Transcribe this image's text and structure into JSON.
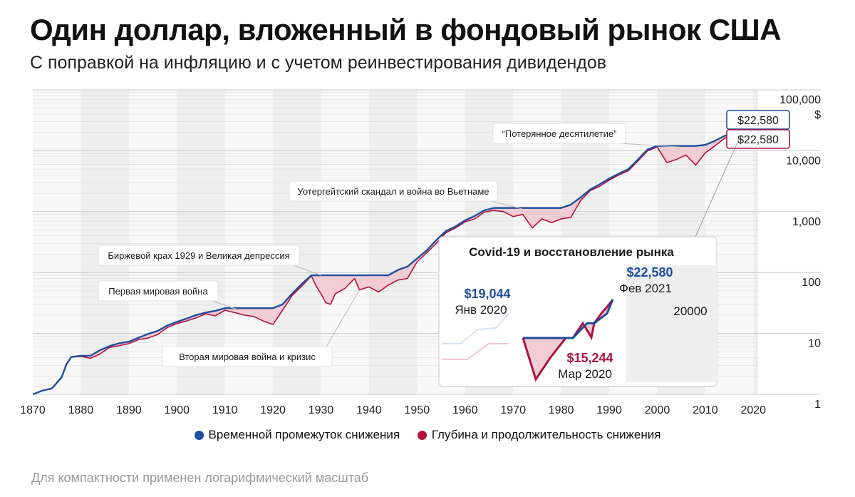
{
  "header": {
    "title": "Один доллар, вложенный в фондовый рынок США",
    "subtitle": "С поправкой на инфляцию и с учетом реинвестирования дивидендов"
  },
  "colors": {
    "blue": "#1f4e9c",
    "red": "#b0123f",
    "fill_red": "#f0c6cf",
    "band": "#efefef"
  },
  "chart_data": {
    "type": "line",
    "y_scale": "log",
    "ylim": [
      1,
      100000
    ],
    "xlim": [
      1870,
      2021
    ],
    "y_ticks": [
      {
        "value": 1,
        "label": "1"
      },
      {
        "value": 10,
        "label": "10"
      },
      {
        "value": 100,
        "label": "100"
      },
      {
        "value": 1000,
        "label": "1,000"
      },
      {
        "value": 10000,
        "label": "10,000"
      },
      {
        "value": 100000,
        "label": "100,000"
      }
    ],
    "y_unit": "$",
    "x_ticks": [
      {
        "value": 1870,
        "label": "1870"
      },
      {
        "value": 1880,
        "label": "1880"
      },
      {
        "value": 1890,
        "label": "1890"
      },
      {
        "value": 1900,
        "label": "1900"
      },
      {
        "value": 1910,
        "label": "1910"
      },
      {
        "value": 1920,
        "label": "1920"
      },
      {
        "value": 1930,
        "label": "1930"
      },
      {
        "value": 1940,
        "label": "1940"
      },
      {
        "value": 1950,
        "label": "1950"
      },
      {
        "value": 1960,
        "label": "1960"
      },
      {
        "value": 1970,
        "label": "1970"
      },
      {
        "value": 1980,
        "label": "1980"
      },
      {
        "value": 1990,
        "label": "1990"
      },
      {
        "value": 2000,
        "label": "2000"
      },
      {
        "value": 2010,
        "label": "2010"
      },
      {
        "value": 2020,
        "label": "2020"
      }
    ],
    "grid": true,
    "shaded_decades": true,
    "series": [
      {
        "name": "Временной промежуток снижения",
        "role": "peak",
        "color": "#1f4e9c",
        "points": [
          [
            1870,
            1.0
          ],
          [
            1872,
            1.15
          ],
          [
            1874,
            1.25
          ],
          [
            1876,
            1.9
          ],
          [
            1877,
            3.1
          ],
          [
            1878,
            4.1
          ],
          [
            1880,
            4.3
          ],
          [
            1882,
            4.3
          ],
          [
            1884,
            5.3
          ],
          [
            1886,
            6.2
          ],
          [
            1888,
            6.9
          ],
          [
            1890,
            7.3
          ],
          [
            1892,
            8.5
          ],
          [
            1894,
            9.8
          ],
          [
            1896,
            11
          ],
          [
            1898,
            13.5
          ],
          [
            1900,
            15.5
          ],
          [
            1902,
            17.5
          ],
          [
            1904,
            20
          ],
          [
            1906,
            22
          ],
          [
            1908,
            23.5
          ],
          [
            1910,
            26
          ],
          [
            1912,
            26
          ],
          [
            1914,
            26
          ],
          [
            1916,
            26
          ],
          [
            1918,
            26
          ],
          [
            1920,
            26
          ],
          [
            1922,
            30
          ],
          [
            1924,
            45
          ],
          [
            1926,
            65
          ],
          [
            1928,
            90
          ],
          [
            1930,
            90
          ],
          [
            1932,
            90
          ],
          [
            1934,
            90
          ],
          [
            1936,
            90
          ],
          [
            1938,
            90
          ],
          [
            1940,
            90
          ],
          [
            1942,
            90
          ],
          [
            1944,
            90
          ],
          [
            1946,
            110
          ],
          [
            1948,
            125
          ],
          [
            1950,
            170
          ],
          [
            1952,
            230
          ],
          [
            1954,
            340
          ],
          [
            1956,
            480
          ],
          [
            1958,
            570
          ],
          [
            1960,
            720
          ],
          [
            1962,
            850
          ],
          [
            1964,
            1050
          ],
          [
            1966,
            1150
          ],
          [
            1968,
            1150
          ],
          [
            1970,
            1150
          ],
          [
            1972,
            1150
          ],
          [
            1974,
            1150
          ],
          [
            1976,
            1150
          ],
          [
            1978,
            1150
          ],
          [
            1980,
            1150
          ],
          [
            1982,
            1300
          ],
          [
            1984,
            1700
          ],
          [
            1986,
            2300
          ],
          [
            1988,
            2800
          ],
          [
            1990,
            3500
          ],
          [
            1992,
            4200
          ],
          [
            1994,
            5000
          ],
          [
            1996,
            7200
          ],
          [
            1998,
            10500
          ],
          [
            2000,
            12000
          ],
          [
            2002,
            12000
          ],
          [
            2004,
            12000
          ],
          [
            2006,
            12000
          ],
          [
            2008,
            12000
          ],
          [
            2010,
            12500
          ],
          [
            2012,
            14500
          ],
          [
            2014,
            17500
          ],
          [
            2016,
            20000
          ],
          [
            2018,
            22580
          ]
        ]
      },
      {
        "name": "Глубина и продолжительность снижения",
        "role": "price",
        "color": "#b0123f",
        "points": [
          [
            1870,
            1.0
          ],
          [
            1872,
            1.15
          ],
          [
            1874,
            1.25
          ],
          [
            1876,
            1.9
          ],
          [
            1877,
            3.1
          ],
          [
            1878,
            4.1
          ],
          [
            1880,
            4.2
          ],
          [
            1882,
            3.9
          ],
          [
            1884,
            4.6
          ],
          [
            1886,
            5.9
          ],
          [
            1888,
            6.3
          ],
          [
            1890,
            6.8
          ],
          [
            1892,
            7.9
          ],
          [
            1894,
            8.4
          ],
          [
            1896,
            9.6
          ],
          [
            1898,
            12.5
          ],
          [
            1900,
            14.5
          ],
          [
            1902,
            16
          ],
          [
            1904,
            18
          ],
          [
            1906,
            21
          ],
          [
            1908,
            19.5
          ],
          [
            1910,
            24
          ],
          [
            1912,
            22
          ],
          [
            1914,
            20
          ],
          [
            1916,
            19
          ],
          [
            1918,
            16
          ],
          [
            1920,
            14
          ],
          [
            1922,
            24
          ],
          [
            1924,
            42
          ],
          [
            1926,
            60
          ],
          [
            1928,
            88
          ],
          [
            1929,
            60
          ],
          [
            1930,
            45
          ],
          [
            1931,
            32
          ],
          [
            1932,
            30
          ],
          [
            1933,
            45
          ],
          [
            1935,
            55
          ],
          [
            1937,
            80
          ],
          [
            1938,
            52
          ],
          [
            1940,
            58
          ],
          [
            1942,
            48
          ],
          [
            1944,
            62
          ],
          [
            1946,
            75
          ],
          [
            1948,
            80
          ],
          [
            1950,
            150
          ],
          [
            1952,
            210
          ],
          [
            1954,
            300
          ],
          [
            1956,
            450
          ],
          [
            1958,
            540
          ],
          [
            1960,
            680
          ],
          [
            1962,
            760
          ],
          [
            1964,
            980
          ],
          [
            1966,
            1050
          ],
          [
            1968,
            1000
          ],
          [
            1970,
            830
          ],
          [
            1972,
            900
          ],
          [
            1974,
            540
          ],
          [
            1976,
            760
          ],
          [
            1978,
            660
          ],
          [
            1980,
            760
          ],
          [
            1982,
            800
          ],
          [
            1984,
            1500
          ],
          [
            1986,
            2200
          ],
          [
            1988,
            2600
          ],
          [
            1990,
            3300
          ],
          [
            1992,
            4000
          ],
          [
            1994,
            4700
          ],
          [
            1996,
            6800
          ],
          [
            1998,
            10000
          ],
          [
            2000,
            11500
          ],
          [
            2002,
            6400
          ],
          [
            2004,
            7200
          ],
          [
            2006,
            8500
          ],
          [
            2008,
            5800
          ],
          [
            2010,
            9200
          ],
          [
            2012,
            12000
          ],
          [
            2014,
            16000
          ],
          [
            2016,
            18500
          ],
          [
            2018,
            22580
          ]
        ]
      }
    ],
    "end_value_labels": [
      {
        "series": "peak",
        "label": "$22,580",
        "color": "#1f4e9c"
      },
      {
        "series": "price",
        "label": "$22,580",
        "color": "#b0123f"
      }
    ],
    "annotations": [
      {
        "text": "“Потерянное десятилетие”",
        "x": 2005,
        "y": 11500
      },
      {
        "text": "Уотергейтский скандал и война во Вьетнаме",
        "x": 1972,
        "y": 1100
      },
      {
        "text": "Биржевой крах 1929 и Великая депрессия",
        "x": 1930,
        "y": 90
      },
      {
        "text": "Первая мировая война",
        "x": 1913,
        "y": 24
      },
      {
        "text": "Вторая мировая война и кризис",
        "x": 1938,
        "y": 52
      }
    ],
    "inset": {
      "title": "Covid-19 и восстановление рынка",
      "points": [
        {
          "label_value": "$19,044",
          "label_date": "Янв 2020",
          "value": 19044
        },
        {
          "label_value": "$15,244",
          "label_date": "Мар 2020",
          "value": 15244
        },
        {
          "label_value": "$22,580",
          "label_date": "Фев 2021",
          "value": 22580
        }
      ],
      "axis_label": "20000"
    }
  },
  "legend": {
    "items": [
      {
        "label": "Временной промежуток снижения",
        "color": "#1f4e9c"
      },
      {
        "label": "Глубина и продолжительность снижения",
        "color": "#b0123f"
      }
    ]
  },
  "footnote": "Для компактности применен логарифмический масштаб"
}
